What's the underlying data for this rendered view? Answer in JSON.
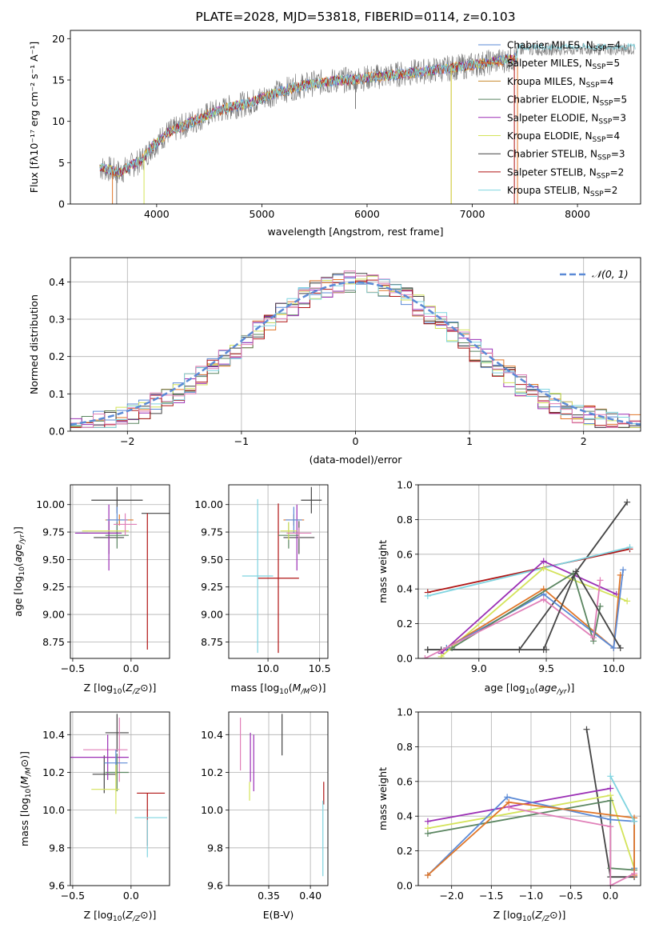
{
  "figure": {
    "title": "PLATE=2028, MJD=53818, FIBERID=0114, z=0.103"
  },
  "colors": {
    "Chabrier MILES": "#5b8ad6",
    "Salpeter MILES": "#e07628",
    "Kroupa MILES": "#e07628",
    "Chabrier ELODIE": "#5a8560",
    "Salpeter ELODIE": "#9b2fb5",
    "Kroupa ELODIE": "#d4e35a",
    "Chabrier STELIB": "#444444",
    "Salpeter STELIB": "#b01515",
    "Kroupa STELIB": "#7fd4e0",
    "data": "#777777",
    "pink": "#e07fb8",
    "gauss": "#5b8ad6"
  },
  "chart_data": [
    {
      "id": "spectrum",
      "type": "line",
      "title": "PLATE=2028, MJD=53818, FIBERID=0114, z=0.103",
      "xlabel": "wavelength [Angstrom, rest frame]",
      "ylabel": "Flux [fλ10⁻¹⁷ erg cm⁻² s⁻¹ A⁻¹]",
      "xlim": [
        3180,
        8600
      ],
      "ylim": [
        0,
        21
      ],
      "xticks": [
        4000,
        5000,
        6000,
        7000,
        8000
      ],
      "yticks": [
        0,
        5,
        10,
        15,
        20
      ],
      "legend": "top-right",
      "legend_entries": [
        {
          "name": "Chabrier MILES, N_SSP=4",
          "label": "Chabrier MILES, N",
          "sub": "SSP",
          "tail": "=4",
          "color": "#5b8ad6"
        },
        {
          "name": "Salpeter MILES, N_SSP=5",
          "label": "Salpeter MILES, N",
          "sub": "SSP",
          "tail": "=5",
          "color": "#e07628"
        },
        {
          "name": "Kroupa MILES, N_SSP=4",
          "label": "Kroupa MILES, N",
          "sub": "SSP",
          "tail": "=4",
          "color": "#c8892e"
        },
        {
          "name": "Chabrier ELODIE, N_SSP=5",
          "label": "Chabrier ELODIE, N",
          "sub": "SSP",
          "tail": "=5",
          "color": "#5a8560"
        },
        {
          "name": "Salpeter ELODIE, N_SSP=3",
          "label": "Salpeter ELODIE, N",
          "sub": "SSP",
          "tail": "=3",
          "color": "#9b2fb5"
        },
        {
          "name": "Kroupa ELODIE, N_SSP=4",
          "label": "Kroupa ELODIE, N",
          "sub": "SSP",
          "tail": "=4",
          "color": "#d4e35a"
        },
        {
          "name": "Chabrier STELIB, N_SSP=3",
          "label": "Chabrier STELIB, N",
          "sub": "SSP",
          "tail": "=3",
          "color": "#444444"
        },
        {
          "name": "Salpeter STELIB, N_SSP=2",
          "label": "Salpeter STELIB, N",
          "sub": "SSP",
          "tail": "=2",
          "color": "#b01515"
        },
        {
          "name": "Kroupa STELIB, N_SSP=2",
          "label": "Kroupa STELIB, N",
          "sub": "SSP",
          "tail": "=2",
          "color": "#7fd4e0"
        }
      ],
      "continuum": {
        "x": [
          3450,
          3550,
          3650,
          3750,
          3850,
          3950,
          4100,
          4300,
          4500,
          4700,
          4900,
          5100,
          5300,
          5500,
          5700,
          5900,
          6100,
          6300,
          6500,
          6700,
          6900,
          7100,
          7300,
          7400
        ],
        "y": [
          4.4,
          4.2,
          3.8,
          4.6,
          5.2,
          6.8,
          8.6,
          9.7,
          10.9,
          11.7,
          12.3,
          13.3,
          14.1,
          14.6,
          14.9,
          15.1,
          15.4,
          15.7,
          16.0,
          16.3,
          16.6,
          17.0,
          17.4,
          17.6
        ]
      }
    },
    {
      "id": "residuals",
      "type": "line",
      "xlabel": "(data-model)/error",
      "ylabel": "Normed distribution",
      "xlim": [
        -2.5,
        2.5
      ],
      "ylim": [
        0,
        0.465
      ],
      "xticks": [
        -2,
        -1,
        0,
        1,
        2
      ],
      "yticks": [
        0.0,
        0.1,
        0.2,
        0.3,
        0.4
      ],
      "legend": "top-right",
      "gauss_label": "𝒩(0, 1)",
      "gauss": {
        "mean": 0,
        "sigma": 1
      }
    },
    {
      "id": "age-vs-Z",
      "type": "scatter",
      "xlabel": "Z [log₁₀(Z/Z⊙)]",
      "ylabel": "age  [log₁₀(age/yr)]",
      "xlim": [
        -0.52,
        0.33
      ],
      "ylim": [
        8.6,
        10.18
      ],
      "xticks": [
        -0.5,
        0.0
      ],
      "yticks": [
        8.75,
        9.0,
        9.25,
        9.5,
        9.75,
        10.0
      ],
      "points": [
        {
          "color": "#444444",
          "x": -0.12,
          "xerr": 0.22,
          "y": 10.04,
          "yerr": 0.12
        },
        {
          "color": "#444444",
          "x": 0.21,
          "xerr": 0.12,
          "y": 9.92,
          "yerr": 0.0
        },
        {
          "color": "#444444",
          "x": -0.19,
          "xerr": 0.13,
          "y": 9.7,
          "yerr": 0.15
        },
        {
          "color": "#b01515",
          "x": 0.14,
          "xerr": 0.0,
          "y": 9.3,
          "yerr": 0.62
        },
        {
          "color": "#9b2fb5",
          "x": -0.19,
          "xerr": 0.0,
          "y": 9.7,
          "yerr": 0.3
        },
        {
          "color": "#e07628",
          "x": -0.1,
          "xerr": 0.12,
          "y": 9.86,
          "yerr": 0.05
        },
        {
          "color": "#5b8ad6",
          "x": -0.12,
          "xerr": 0.09,
          "y": 9.86,
          "yerr": 0.12
        },
        {
          "color": "#5a8560",
          "x": -0.12,
          "xerr": 0.1,
          "y": 9.72,
          "yerr": 0.12
        },
        {
          "color": "#d4e35a",
          "x": -0.22,
          "xerr": 0.2,
          "y": 9.76,
          "yerr": 0.0
        },
        {
          "color": "#e07fb8",
          "x": -0.05,
          "xerr": 0.1,
          "y": 9.82,
          "yerr": 0.1
        },
        {
          "color": "#7fd4e0",
          "x": -0.42,
          "xerr": 0.05,
          "y": 9.74,
          "yerr": 0.0
        },
        {
          "color": "#9b2fb5",
          "x": -0.28,
          "xerr": 0.2,
          "y": 9.74,
          "yerr": 0.0
        }
      ]
    },
    {
      "id": "age-vs-mass",
      "type": "scatter",
      "xlabel": "mass [log₁₀(M/M⊙)]",
      "xlim": [
        9.62,
        10.58
      ],
      "ylim": [
        8.6,
        10.18
      ],
      "xticks": [
        10.0,
        10.5
      ],
      "yticks": [
        8.75,
        9.0,
        9.25,
        9.5,
        9.75,
        10.0
      ],
      "points": [
        {
          "color": "#444444",
          "x": 10.42,
          "xerr": 0.1,
          "y": 10.04,
          "yerr": 0.12
        },
        {
          "color": "#444444",
          "x": 10.3,
          "xerr": 0.15,
          "y": 9.7,
          "yerr": 0.15
        },
        {
          "color": "#b01515",
          "x": 10.1,
          "xerr": 0.2,
          "y": 9.33,
          "yerr": 0.68
        },
        {
          "color": "#7fd4e0",
          "x": 9.9,
          "xerr": 0.15,
          "y": 9.35,
          "yerr": 0.7
        },
        {
          "color": "#9b2fb5",
          "x": 10.28,
          "xerr": 0.0,
          "y": 9.7,
          "yerr": 0.3
        },
        {
          "color": "#e07628",
          "x": 10.25,
          "xerr": 0.1,
          "y": 9.86,
          "yerr": 0.05
        },
        {
          "color": "#5b8ad6",
          "x": 10.25,
          "xerr": 0.08,
          "y": 9.86,
          "yerr": 0.12
        },
        {
          "color": "#5a8560",
          "x": 10.2,
          "xerr": 0.1,
          "y": 9.72,
          "yerr": 0.12
        },
        {
          "color": "#d4e35a",
          "x": 10.2,
          "xerr": 0.08,
          "y": 9.76,
          "yerr": 0.08
        },
        {
          "color": "#e07fb8",
          "x": 10.3,
          "xerr": 0.12,
          "y": 9.74,
          "yerr": 0.05
        }
      ]
    },
    {
      "id": "massweight-vs-age",
      "type": "line",
      "xlabel": "age  [log₁₀(age/yr)]",
      "ylabel": "mass weight",
      "xlim": [
        8.55,
        10.2
      ],
      "ylim": [
        0,
        1.0
      ],
      "xticks": [
        9.0,
        9.5,
        10.0
      ],
      "yticks": [
        0.0,
        0.2,
        0.4,
        0.6,
        0.8,
        1.0
      ],
      "series": [
        {
          "color": "#444444",
          "x": [
            8.62,
            9.3,
            10.1
          ],
          "y": [
            0.05,
            0.05,
            0.9
          ]
        },
        {
          "color": "#444444",
          "x": [
            8.62,
            8.72,
            9.5
          ],
          "y": [
            0.05,
            0.05,
            0.05
          ]
        },
        {
          "color": "#b01515",
          "x": [
            8.62,
            10.12
          ],
          "y": [
            0.38,
            0.63
          ]
        },
        {
          "color": "#7fd4e0",
          "x": [
            8.62,
            10.12
          ],
          "y": [
            0.36,
            0.64
          ]
        },
        {
          "color": "#9b2fb5",
          "x": [
            8.72,
            9.48,
            10.02
          ],
          "y": [
            0.03,
            0.56,
            0.37
          ]
        },
        {
          "color": "#d4e35a",
          "x": [
            8.72,
            9.48,
            10.1
          ],
          "y": [
            0.01,
            0.52,
            0.33
          ]
        },
        {
          "color": "#e07628",
          "x": [
            8.76,
            9.48,
            10.0,
            10.05
          ],
          "y": [
            0.06,
            0.4,
            0.06,
            0.48
          ]
        },
        {
          "color": "#5b8ad6",
          "x": [
            8.76,
            9.48,
            10.0,
            10.07
          ],
          "y": [
            0.06,
            0.37,
            0.06,
            0.51
          ]
        },
        {
          "color": "#5a8560",
          "x": [
            8.8,
            9.7,
            9.85,
            9.9
          ],
          "y": [
            0.06,
            0.49,
            0.1,
            0.3
          ]
        },
        {
          "color": "#e07fb8",
          "x": [
            8.6,
            9.48,
            9.85,
            9.9
          ],
          "y": [
            0.0,
            0.34,
            0.12,
            0.45
          ]
        },
        {
          "color": "#444444",
          "x": [
            9.48,
            9.72,
            10.05
          ],
          "y": [
            0.05,
            0.5,
            0.06
          ]
        }
      ]
    },
    {
      "id": "mass-vs-Z",
      "type": "scatter",
      "xlabel": "Z [log₁₀(Z/Z⊙)]",
      "ylabel": "mass [log₁₀(M/M⊙)]",
      "xlim": [
        -0.52,
        0.33
      ],
      "ylim": [
        9.6,
        10.52
      ],
      "xticks": [
        -0.5,
        0.0
      ],
      "yticks": [
        9.6,
        9.8,
        10.0,
        10.2,
        10.4
      ],
      "points": [
        {
          "color": "#444444",
          "x": -0.12,
          "xerr": 0.1,
          "y": 10.41,
          "yerr": 0.1
        },
        {
          "color": "#444444",
          "x": -0.23,
          "xerr": 0.1,
          "y": 10.19,
          "yerr": 0.1
        },
        {
          "color": "#e07fb8",
          "x": -0.22,
          "xerr": 0.19,
          "y": 10.32,
          "yerr": 0.0
        },
        {
          "color": "#e07fb8",
          "x": -0.1,
          "xerr": 0.0,
          "y": 10.32,
          "yerr": 0.17
        },
        {
          "color": "#9b2fb5",
          "x": -0.27,
          "xerr": 0.25,
          "y": 10.28,
          "yerr": 0.0
        },
        {
          "color": "#9b2fb5",
          "x": -0.2,
          "xerr": 0.0,
          "y": 10.28,
          "yerr": 0.12
        },
        {
          "color": "#5b8ad6",
          "x": -0.13,
          "xerr": 0.1,
          "y": 10.25,
          "yerr": 0.07
        },
        {
          "color": "#5a8560",
          "x": -0.12,
          "xerr": 0.1,
          "y": 10.2,
          "yerr": 0.1
        },
        {
          "color": "#d4e35a",
          "x": -0.22,
          "xerr": 0.12,
          "y": 10.11,
          "yerr": 0.0
        },
        {
          "color": "#d4e35a",
          "x": -0.13,
          "xerr": 0.0,
          "y": 10.11,
          "yerr": 0.13
        },
        {
          "color": "#b01515",
          "x": 0.17,
          "xerr": 0.12,
          "y": 10.09,
          "yerr": 0.0
        },
        {
          "color": "#b01515",
          "x": 0.14,
          "xerr": 0.0,
          "y": 9.95,
          "yerr": 0.14
        },
        {
          "color": "#7fd4e0",
          "x": 0.17,
          "xerr": 0.14,
          "y": 9.96,
          "yerr": 0.0
        },
        {
          "color": "#7fd4e0",
          "x": 0.14,
          "xerr": 0.0,
          "y": 9.85,
          "yerr": 0.1
        }
      ]
    },
    {
      "id": "mass-vs-EBV",
      "type": "scatter",
      "xlabel": "E(B-V)",
      "xlim": [
        0.302,
        0.421
      ],
      "ylim": [
        9.6,
        10.52
      ],
      "xticks": [
        0.35,
        0.4
      ],
      "yticks": [
        9.6,
        9.8,
        10.0,
        10.2,
        10.4
      ],
      "points": [
        {
          "color": "#444444",
          "x": 0.366,
          "xerr": 0.0,
          "y": 10.4,
          "yerr": 0.11
        },
        {
          "color": "#e07fb8",
          "x": 0.316,
          "xerr": 0.0,
          "y": 10.35,
          "yerr": 0.14
        },
        {
          "color": "#9b2fb5",
          "x": 0.328,
          "xerr": 0.0,
          "y": 10.28,
          "yerr": 0.13
        },
        {
          "color": "#9b2fb5",
          "x": 0.332,
          "xerr": 0.0,
          "y": 10.25,
          "yerr": 0.15
        },
        {
          "color": "#d4e35a",
          "x": 0.327,
          "xerr": 0.0,
          "y": 10.1,
          "yerr": 0.05
        },
        {
          "color": "#b01515",
          "x": 0.416,
          "xerr": 0.0,
          "y": 10.09,
          "yerr": 0.06
        },
        {
          "color": "#7fd4e0",
          "x": 0.415,
          "xerr": 0.0,
          "y": 9.85,
          "yerr": 0.2
        }
      ]
    },
    {
      "id": "massweight-vs-Z",
      "type": "line",
      "xlabel": "Z [log₁₀(Z/Z⊙)]",
      "ylabel": "mass weight",
      "xlim": [
        -2.42,
        0.38
      ],
      "ylim": [
        0,
        1.0
      ],
      "xticks": [
        -2.0,
        -1.5,
        -1.0,
        -0.5,
        0.0
      ],
      "yticks": [
        0.0,
        0.2,
        0.4,
        0.6,
        0.8,
        1.0
      ],
      "series": [
        {
          "color": "#444444",
          "x": [
            -0.3,
            0.0,
            0.3
          ],
          "y": [
            0.9,
            0.05,
            0.05
          ]
        },
        {
          "color": "#9b2fb5",
          "x": [
            -2.3,
            0.0
          ],
          "y": [
            0.37,
            0.56
          ]
        },
        {
          "color": "#d4e35a",
          "x": [
            -2.3,
            0.0,
            0.3
          ],
          "y": [
            0.33,
            0.52,
            0.1
          ]
        },
        {
          "color": "#5a8560",
          "x": [
            -2.3,
            0.0,
            0.0,
            0.3
          ],
          "y": [
            0.3,
            0.49,
            0.1,
            0.09
          ]
        },
        {
          "color": "#5b8ad6",
          "x": [
            -2.3,
            -1.3,
            0.0,
            0.3,
            0.3
          ],
          "y": [
            0.06,
            0.51,
            0.38,
            0.37,
            0.1
          ]
        },
        {
          "color": "#e07628",
          "x": [
            -2.3,
            -1.28,
            0.3,
            0.3
          ],
          "y": [
            0.06,
            0.48,
            0.39,
            0.06
          ]
        },
        {
          "color": "#e07fb8",
          "x": [
            -1.28,
            0.0,
            0.0,
            0.3
          ],
          "y": [
            0.45,
            0.34,
            0.0,
            0.07
          ]
        },
        {
          "color": "#7fd4e0",
          "x": [
            0.0,
            0.3
          ],
          "y": [
            0.63,
            0.37
          ]
        }
      ]
    }
  ]
}
